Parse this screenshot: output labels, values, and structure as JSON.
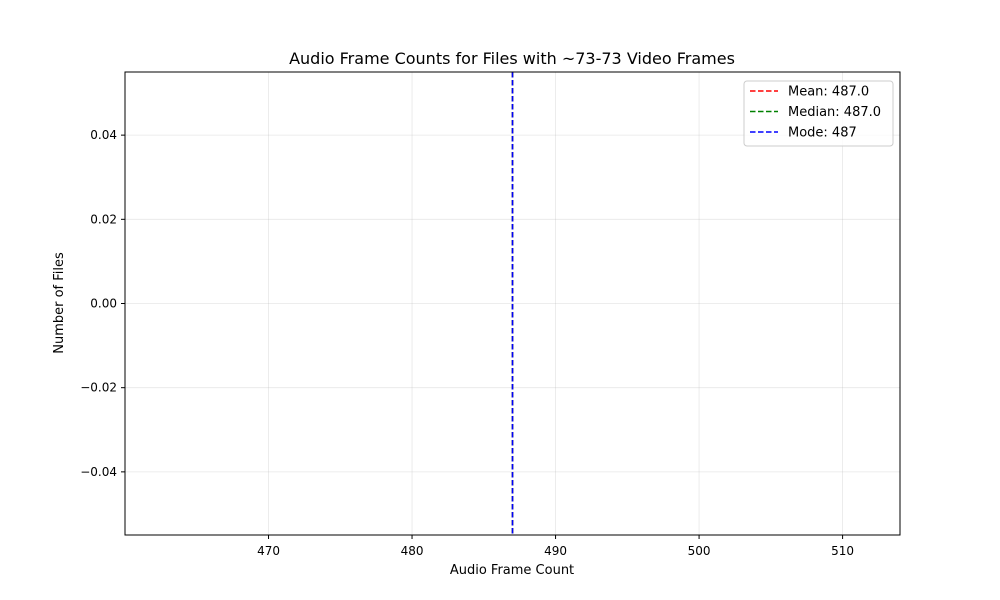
{
  "chart_data": {
    "type": "histogram",
    "title": "Audio Frame Counts for Files with ~73-73 Video Frames",
    "xlabel": "Audio Frame Count",
    "ylabel": "Number of Files",
    "xlim": [
      460,
      514
    ],
    "ylim": [
      -0.055,
      0.055
    ],
    "x_ticks": [
      470,
      480,
      490,
      500,
      510
    ],
    "y_ticks": [
      0.04,
      0.02,
      0.0,
      -0.02,
      -0.04
    ],
    "x_tick_labels": [
      "470",
      "480",
      "490",
      "500",
      "510"
    ],
    "y_tick_labels": [
      "0.04",
      "0.02",
      "0.00",
      "−0.02",
      "−0.04"
    ],
    "grid": true,
    "legend_position": "top-right",
    "bars": [],
    "reference_lines": [
      {
        "label": "Mean: 487.0",
        "value": 487.0,
        "color": "#ff0000",
        "style": "dashed"
      },
      {
        "label": "Median: 487.0",
        "value": 487.0,
        "color": "#008000",
        "style": "dashed"
      },
      {
        "label": "Mode: 487",
        "value": 487,
        "color": "#0000ff",
        "style": "dashed"
      }
    ]
  }
}
